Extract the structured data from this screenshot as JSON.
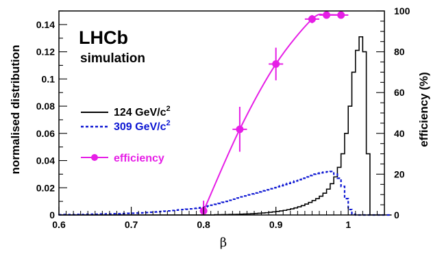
{
  "chart_data": {
    "type": "histogram",
    "title": "",
    "xlabel": "β",
    "ylabel": "normalised distribution",
    "ylabel_right": "efficiency (%)",
    "xlim": [
      0.6,
      1.05
    ],
    "ylim": [
      0,
      0.15
    ],
    "ylim_right": [
      0,
      100
    ],
    "x_ticks": [
      "0.6",
      "0.7",
      "0.8",
      "0.9",
      "1"
    ],
    "y_ticks": [
      "0",
      "0.02",
      "0.04",
      "0.06",
      "0.08",
      "0.1",
      "0.12",
      "0.14"
    ],
    "y_ticks_right": [
      "0",
      "20",
      "40",
      "60",
      "80",
      "100"
    ],
    "annotation": {
      "line1": "LHCb",
      "line2": "simulation"
    },
    "bin_width": 0.005,
    "bins_start": 0.6,
    "series": [
      {
        "name": "124 GeV/c",
        "name_sup": "2",
        "color": "#000000",
        "style": "solid",
        "values": [
          0,
          0,
          0,
          0,
          0,
          0,
          0,
          0,
          0,
          0,
          0,
          0,
          0,
          0,
          0,
          0,
          0,
          0,
          0,
          0,
          0,
          0,
          0,
          0,
          0,
          0,
          0,
          0,
          0,
          0,
          0,
          0,
          0,
          0,
          0,
          0,
          0,
          0,
          0,
          0,
          0,
          0,
          0,
          0.0002,
          0.0002,
          0.0003,
          0.0003,
          0.0004,
          0.0004,
          0.0005,
          0.0006,
          0.0007,
          0.0008,
          0.0009,
          0.0011,
          0.0013,
          0.0015,
          0.0017,
          0.002,
          0.0023,
          0.0026,
          0.003,
          0.0034,
          0.0039,
          0.0045,
          0.0052,
          0.006,
          0.0069,
          0.008,
          0.0092,
          0.0106,
          0.012,
          0.0138,
          0.016,
          0.019,
          0.023,
          0.028,
          0.035,
          0.045,
          0.06,
          0.08,
          0.105,
          0.121,
          0.131,
          0.12,
          0.045,
          0.0,
          0,
          0,
          0,
          0,
          0
        ]
      },
      {
        "name": "309 GeV/c",
        "name_sup": "2",
        "color": "#0a14d2",
        "style": "dashed",
        "values": [
          0.0002,
          0.0003,
          0.0002,
          0.0003,
          0.0002,
          0.0004,
          0.0003,
          0.0005,
          0.0004,
          0.0006,
          0.0005,
          0.0007,
          0.0006,
          0.0008,
          0.0007,
          0.0009,
          0.0008,
          0.001,
          0.0011,
          0.0012,
          0.0013,
          0.0014,
          0.0015,
          0.0016,
          0.0018,
          0.002,
          0.0022,
          0.0024,
          0.0026,
          0.0028,
          0.003,
          0.0033,
          0.0036,
          0.0038,
          0.004,
          0.0042,
          0.0045,
          0.0048,
          0.0051,
          0.0055,
          0.006,
          0.0066,
          0.0072,
          0.0078,
          0.0085,
          0.0093,
          0.01,
          0.0108,
          0.0116,
          0.0125,
          0.0133,
          0.014,
          0.0148,
          0.0155,
          0.0162,
          0.017,
          0.0178,
          0.0185,
          0.0193,
          0.02,
          0.0208,
          0.0215,
          0.0224,
          0.0232,
          0.024,
          0.025,
          0.026,
          0.027,
          0.028,
          0.029,
          0.03,
          0.0305,
          0.031,
          0.0315,
          0.0318,
          0.032,
          0.03,
          0.027,
          0.021,
          0.012,
          0.004,
          0.0005,
          0,
          0,
          0,
          0,
          0,
          0,
          0,
          0,
          0,
          0
        ]
      },
      {
        "name": "efficiency",
        "color": "#e61ee6",
        "style": "curve-with-points",
        "axis": "right",
        "points": [
          {
            "x": 0.8,
            "y": 2,
            "yerr": 5,
            "xerr": 0.005
          },
          {
            "x": 0.85,
            "y": 42,
            "yerr": 11,
            "xerr": 0.01
          },
          {
            "x": 0.9,
            "y": 74,
            "yerr": 8,
            "xerr": 0.01
          },
          {
            "x": 0.95,
            "y": 96,
            "yerr": 2,
            "xerr": 0.01
          },
          {
            "x": 0.97,
            "y": 98,
            "yerr": 1,
            "xerr": 0.01
          },
          {
            "x": 0.99,
            "y": 98,
            "yerr": 1,
            "xerr": 0.01
          }
        ]
      }
    ],
    "legend_placement": "left-middle",
    "grid": false
  }
}
